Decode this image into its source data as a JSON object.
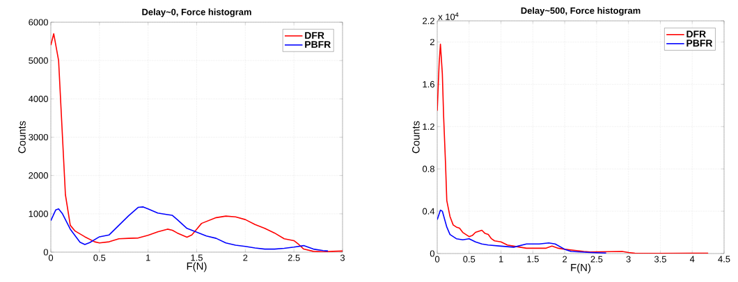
{
  "chart_data": [
    {
      "type": "line",
      "title": "Delay~0, Force histogram",
      "xlabel": "F(N)",
      "ylabel": "Counts",
      "xlim": [
        0,
        3
      ],
      "ylim": [
        0,
        6000
      ],
      "xticks": [
        0,
        0.5,
        1,
        1.5,
        2,
        2.5,
        3
      ],
      "yticks": [
        0,
        1000,
        2000,
        3000,
        4000,
        5000,
        6000
      ],
      "grid": true,
      "legend": "top right",
      "line_style": "solid",
      "series": [
        {
          "name": "DFR",
          "color": "#ff0000",
          "x": [
            0,
            0.03,
            0.08,
            0.12,
            0.15,
            0.2,
            0.25,
            0.35,
            0.45,
            0.5,
            0.6,
            0.7,
            0.8,
            0.9,
            1.0,
            1.1,
            1.2,
            1.25,
            1.3,
            1.4,
            1.45,
            1.5,
            1.55,
            1.6,
            1.7,
            1.8,
            1.9,
            2.0,
            2.1,
            2.2,
            2.3,
            2.4,
            2.5,
            2.55,
            2.6,
            2.7,
            2.8,
            2.9,
            3.0
          ],
          "values": [
            5400,
            5700,
            5000,
            3000,
            1500,
            700,
            550,
            400,
            270,
            240,
            270,
            350,
            360,
            370,
            440,
            530,
            600,
            570,
            500,
            390,
            450,
            600,
            750,
            800,
            900,
            940,
            920,
            850,
            720,
            620,
            500,
            350,
            300,
            200,
            80,
            20,
            10,
            20,
            30
          ]
        },
        {
          "name": "PBFR",
          "color": "#0000ff",
          "x": [
            0,
            0.05,
            0.08,
            0.12,
            0.2,
            0.3,
            0.35,
            0.4,
            0.5,
            0.6,
            0.7,
            0.8,
            0.9,
            0.95,
            1.0,
            1.1,
            1.2,
            1.25,
            1.3,
            1.4,
            1.5,
            1.6,
            1.7,
            1.8,
            1.9,
            2.0,
            2.1,
            2.2,
            2.3,
            2.4,
            2.5,
            2.6,
            2.7,
            2.8,
            2.85
          ],
          "values": [
            820,
            1100,
            1130,
            1000,
            600,
            260,
            200,
            250,
            400,
            450,
            700,
            950,
            1170,
            1180,
            1130,
            1020,
            980,
            960,
            850,
            620,
            520,
            420,
            360,
            240,
            180,
            150,
            110,
            80,
            80,
            100,
            130,
            170,
            80,
            40,
            30
          ]
        }
      ]
    },
    {
      "type": "line",
      "title": "Delay~500, Force histogram",
      "xlabel": "F(N)",
      "ylabel": "Counts",
      "annotations": [
        "x 10$^{4}$"
      ],
      "xlim": [
        0,
        4.5
      ],
      "ylim": [
        0,
        2.2
      ],
      "xticks": [
        0,
        0.5,
        1,
        1.5,
        2,
        2.5,
        3,
        3.5,
        4,
        4.5
      ],
      "yticks": [
        0,
        0.4,
        0.8,
        1.2,
        1.6,
        2,
        2.2
      ],
      "grid": true,
      "legend": "top right",
      "line_style": "solid",
      "series": [
        {
          "name": "DFR",
          "color": "#ff0000",
          "x": [
            0,
            0.03,
            0.05,
            0.08,
            0.1,
            0.13,
            0.15,
            0.2,
            0.25,
            0.3,
            0.35,
            0.4,
            0.5,
            0.55,
            0.6,
            0.65,
            0.7,
            0.75,
            0.8,
            0.85,
            0.9,
            1.0,
            1.1,
            1.2,
            1.3,
            1.4,
            1.5,
            1.7,
            1.8,
            1.9,
            2.0,
            2.1,
            2.3,
            2.4,
            2.6,
            2.9,
            3.0,
            3.1,
            3.5,
            4.0,
            4.25
          ],
          "values": [
            1.35,
            1.8,
            1.98,
            1.7,
            1.3,
            0.85,
            0.5,
            0.35,
            0.27,
            0.25,
            0.24,
            0.2,
            0.16,
            0.17,
            0.2,
            0.21,
            0.22,
            0.19,
            0.18,
            0.14,
            0.12,
            0.11,
            0.08,
            0.07,
            0.06,
            0.05,
            0.05,
            0.05,
            0.07,
            0.05,
            0.04,
            null,
            0.02,
            0.015,
            null,
            0.02,
            0.01,
            0.003,
            0.002,
            0.003,
            0.003
          ]
        },
        {
          "name": "PBFR",
          "color": "#0000ff",
          "x": [
            0,
            0.05,
            0.08,
            0.15,
            0.2,
            0.3,
            0.4,
            0.5,
            0.6,
            0.7,
            0.8,
            1.0,
            1.2,
            1.4,
            1.6,
            1.75,
            1.85,
            2.0,
            2.1,
            2.4,
            2.65
          ],
          "values": [
            0.32,
            0.41,
            0.4,
            0.25,
            0.18,
            0.14,
            0.13,
            0.14,
            0.11,
            0.09,
            0.08,
            0.07,
            0.06,
            0.09,
            0.09,
            0.1,
            0.09,
            0.04,
            0.02,
            0.01,
            0.005
          ]
        }
      ]
    }
  ]
}
